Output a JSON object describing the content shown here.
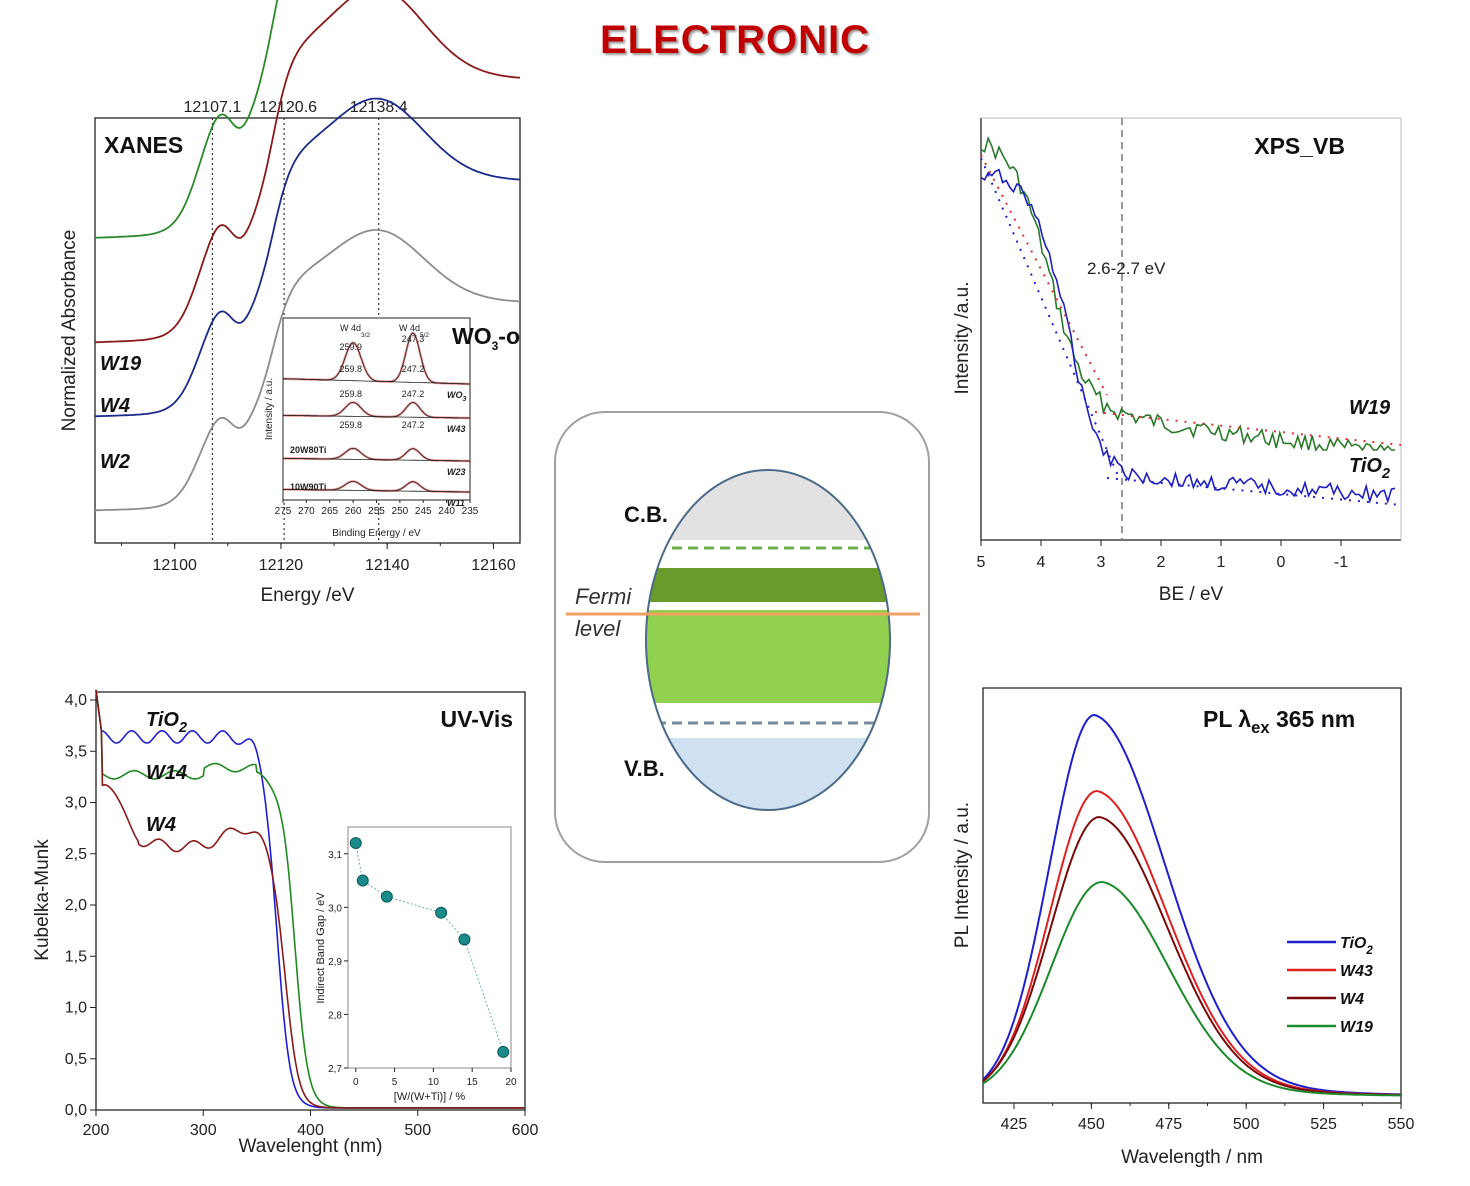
{
  "title": "ELECTRONIC",
  "chart_data": [
    {
      "id": "xanes",
      "type": "line",
      "title": "XANES",
      "xlabel": "Energy /eV",
      "ylabel": "Normalized Absorbance",
      "xlim": [
        12085,
        12165
      ],
      "xticks": [
        12100,
        12120,
        12140,
        12160
      ],
      "xticklabels": [
        "12100",
        "12120",
        "12140",
        "12160"
      ],
      "reference_lines": [
        12107.1,
        12120.6,
        12138.4
      ],
      "reference_labels": [
        "12107.1",
        "12120.6",
        "12138.4"
      ],
      "series": [
        {
          "name": "W19",
          "color": "#2a8a2a"
        },
        {
          "name": "W4",
          "color": "#8a1a1a"
        },
        {
          "name": "W2",
          "color": "#1a2a88"
        },
        {
          "name": "",
          "color": "#8c8c8c"
        }
      ],
      "inset": {
        "xlabel": "Binding Energy / eV",
        "ylabel": "Intensity / a.u.",
        "xlim": [
          275,
          235
        ],
        "xticklabels": [
          "275",
          "270",
          "265",
          "260",
          "255",
          "250",
          "245",
          "240",
          "235"
        ],
        "peak_labels": [
          "W 4d",
          "3/2",
          "W 4d",
          "5/2"
        ],
        "sample_name": "WO",
        "sample_sub": "3",
        "sample_suffix": "-o",
        "rows": [
          {
            "name": "WO",
            "sub": "3",
            "left": "",
            "p1": "259.9",
            "p2": "247.3"
          },
          {
            "name": "W43",
            "sub": "",
            "left": "",
            "p1": "259.8",
            "p2": "247.2"
          },
          {
            "name": "W23",
            "sub": "",
            "left": "20W80Ti",
            "p1": "259.8",
            "p2": "247.2"
          },
          {
            "name": "W11",
            "sub": "",
            "left": "10W90Ti",
            "p1": "259.8",
            "p2": "247.2"
          }
        ]
      }
    },
    {
      "id": "xps_vb",
      "type": "line",
      "title": "XPS_VB",
      "xlabel": "BE / eV",
      "ylabel": "Intensity /a.u.",
      "xlim": [
        5,
        -2
      ],
      "xticks": [
        5,
        4,
        3,
        2,
        1,
        0,
        -1
      ],
      "xticklabels": [
        "5",
        "4",
        "3",
        "2",
        "1",
        "0",
        "-1"
      ],
      "annotation": "2.6-2.7 eV",
      "reference_line": 2.65,
      "series": [
        {
          "name": "W19",
          "color": "#2a7a2a"
        },
        {
          "name": "TiO",
          "sub": "2",
          "color": "#1f1fc0"
        }
      ]
    },
    {
      "id": "uvvis",
      "type": "line",
      "title": "UV-Vis",
      "xlabel": "Wavelenght (nm)",
      "ylabel": "Kubelka-Munk",
      "xlim": [
        200,
        600
      ],
      "ylim": [
        0,
        4
      ],
      "xticks": [
        200,
        300,
        400,
        500,
        600
      ],
      "xticklabels": [
        "200",
        "300",
        "400",
        "500",
        "600"
      ],
      "yticks": [
        0,
        0.5,
        1,
        1.5,
        2,
        2.5,
        3,
        3.5,
        4
      ],
      "yticklabels": [
        "0,0",
        "0,5",
        "1,0",
        "1,5",
        "2,0",
        "2,5",
        "3,0",
        "3,5",
        "4,0"
      ],
      "series": [
        {
          "name": "TiO",
          "sub": "2",
          "color": "#1f1fd0",
          "edge": 368,
          "level": 3.62
        },
        {
          "name": "W14",
          "color": "#1f8a1f",
          "edge": 385,
          "level": 3.25
        },
        {
          "name": "W4",
          "color": "#8a1a1a",
          "edge": 376,
          "level": 2.65
        }
      ],
      "inset": {
        "type": "scatter",
        "xlabel": "[W/(W+Ti)] / %",
        "ylabel": "Indirect Band Gap / eV",
        "xlim": [
          -1,
          20
        ],
        "ylim": [
          2.7,
          3.15
        ],
        "xticks": [
          0,
          5,
          10,
          15,
          20
        ],
        "xticklabels": [
          "0",
          "5",
          "10",
          "15",
          "20"
        ],
        "yticks": [
          2.7,
          2.8,
          2.9,
          3.0,
          3.1
        ],
        "yticklabels": [
          "2,7",
          "2,8",
          "2,9",
          "3,0",
          "3,1"
        ],
        "x": [
          0,
          0.9,
          4,
          11,
          14,
          19
        ],
        "y": [
          3.12,
          3.05,
          3.02,
          2.99,
          2.94,
          2.73
        ]
      }
    },
    {
      "id": "pl",
      "type": "line",
      "title": "PL λex 365 nm",
      "title_main": "PL λ",
      "title_sub": "ex",
      "title_rest": " 365 nm",
      "xlabel": "Wavelength / nm",
      "ylabel": "PL Intensity / a.u.",
      "xlim": [
        415,
        550
      ],
      "xticks": [
        425,
        450,
        475,
        500,
        525,
        550
      ],
      "xticklabels": [
        "425",
        "450",
        "475",
        "500",
        "525",
        "550"
      ],
      "series": [
        {
          "name": "TiO",
          "sub": "2",
          "color": "#1f1fd0",
          "peak": 1.0
        },
        {
          "name": "W43",
          "sub": "",
          "color": "#e02020",
          "peak": 0.75
        },
        {
          "name": "W4",
          "sub": "",
          "color": "#7a0a0a",
          "peak": 0.69
        },
        {
          "name": "W19",
          "sub": "",
          "color": "#1a8a2a",
          "peak": 0.52
        }
      ]
    }
  ],
  "diagram": {
    "cb": "C.B.",
    "vb": "V.B.",
    "fermi1": "Fermi",
    "fermi2": "level",
    "colors": {
      "cb": "#e2e2e2",
      "vb": "#cfe0f0",
      "dark": "#6a9a2a",
      "light": "#92d050",
      "fermi": "#f0a060",
      "dash_green": "#6ab04a",
      "dash_gray": "#7a8a9a"
    }
  }
}
